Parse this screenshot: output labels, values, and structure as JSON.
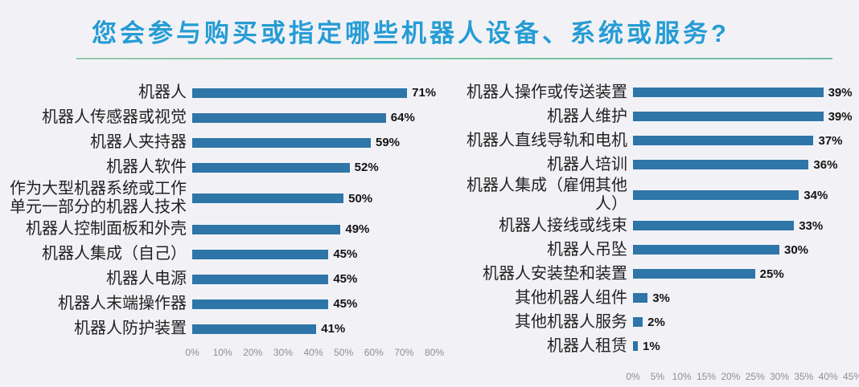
{
  "title": "您会参与购买或指定哪些机器人设备、系统或服务?",
  "colors": {
    "background": "#F2F2F6",
    "title": "#269CD4",
    "divider": "#7FC3A5",
    "bar": "#2E75A8",
    "value_label": "#141414",
    "axis_label": "#8D8D94"
  },
  "chart_data": [
    {
      "type": "bar",
      "orientation": "horizontal",
      "title": "",
      "xlabel": "",
      "ylabel": "",
      "xlim": [
        0,
        80
      ],
      "xmax": 80,
      "grid": false,
      "categories": [
        "机器人",
        "机器人传感器或视觉",
        "机器人夹持器",
        "机器人软件",
        "作为大型机器系统或工作单元一部分的机器人技术",
        "机器人控制面板和外壳",
        "机器人集成（自己）",
        "机器人电源",
        "机器人末端操作器",
        "机器人防护装置"
      ],
      "values": [
        71,
        64,
        59,
        52,
        50,
        49,
        45,
        45,
        45,
        41
      ],
      "value_labels": [
        "71%",
        "64%",
        "59%",
        "52%",
        "50%",
        "49%",
        "45%",
        "45%",
        "45%",
        "41%"
      ],
      "x_ticks": [
        "0%",
        "10%",
        "20%",
        "30%",
        "40%",
        "50%",
        "60%",
        "70%",
        "80%"
      ]
    },
    {
      "type": "bar",
      "orientation": "horizontal",
      "title": "",
      "xlabel": "",
      "ylabel": "",
      "xlim": [
        0,
        45
      ],
      "xmax": 45,
      "grid": false,
      "categories": [
        "机器人操作或传送装置",
        "机器人维护",
        "机器人直线导轨和电机",
        "机器人培训",
        "机器人集成（雇佣其他人）",
        "机器人接线或线束",
        "机器人吊坠",
        "机器人安装垫和装置",
        "其他机器人组件",
        "其他机器人服务",
        "机器人租赁"
      ],
      "values": [
        39,
        39,
        37,
        36,
        34,
        33,
        30,
        25,
        3,
        2,
        1
      ],
      "value_labels": [
        "39%",
        "39%",
        "37%",
        "36%",
        "34%",
        "33%",
        "30%",
        "25%",
        "3%",
        "2%",
        "1%"
      ],
      "x_ticks": [
        "0%",
        "5%",
        "10%",
        "15%",
        "20%",
        "25%",
        "30%",
        "35%",
        "40%",
        "45%"
      ]
    }
  ]
}
